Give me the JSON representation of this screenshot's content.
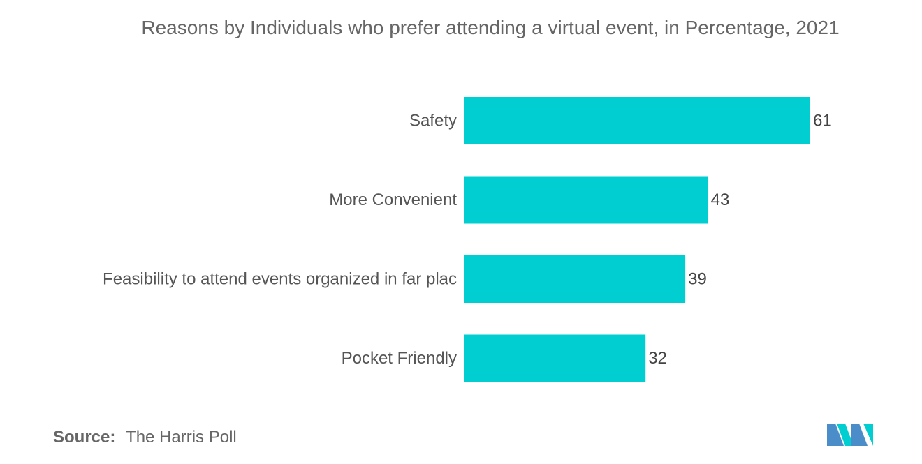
{
  "chart_data": {
    "type": "bar",
    "orientation": "horizontal",
    "title": "Reasons by Individuals who prefer attending a virtual event, in Percentage, 2021",
    "categories": [
      "Safety",
      "More Convenient",
      "Feasibility to attend events organized in far plac",
      "Pocket Friendly"
    ],
    "values": [
      61,
      43,
      39,
      32
    ],
    "xlim": [
      0,
      61
    ],
    "grid": false,
    "legend": "none",
    "bar_color": "#00CED1"
  },
  "source": {
    "label": "Source:",
    "value": "The Harris Poll"
  },
  "logo": {
    "icon": "mordor-intelligence-logo",
    "colors": [
      "#4B8DC8",
      "#00CED1"
    ]
  }
}
